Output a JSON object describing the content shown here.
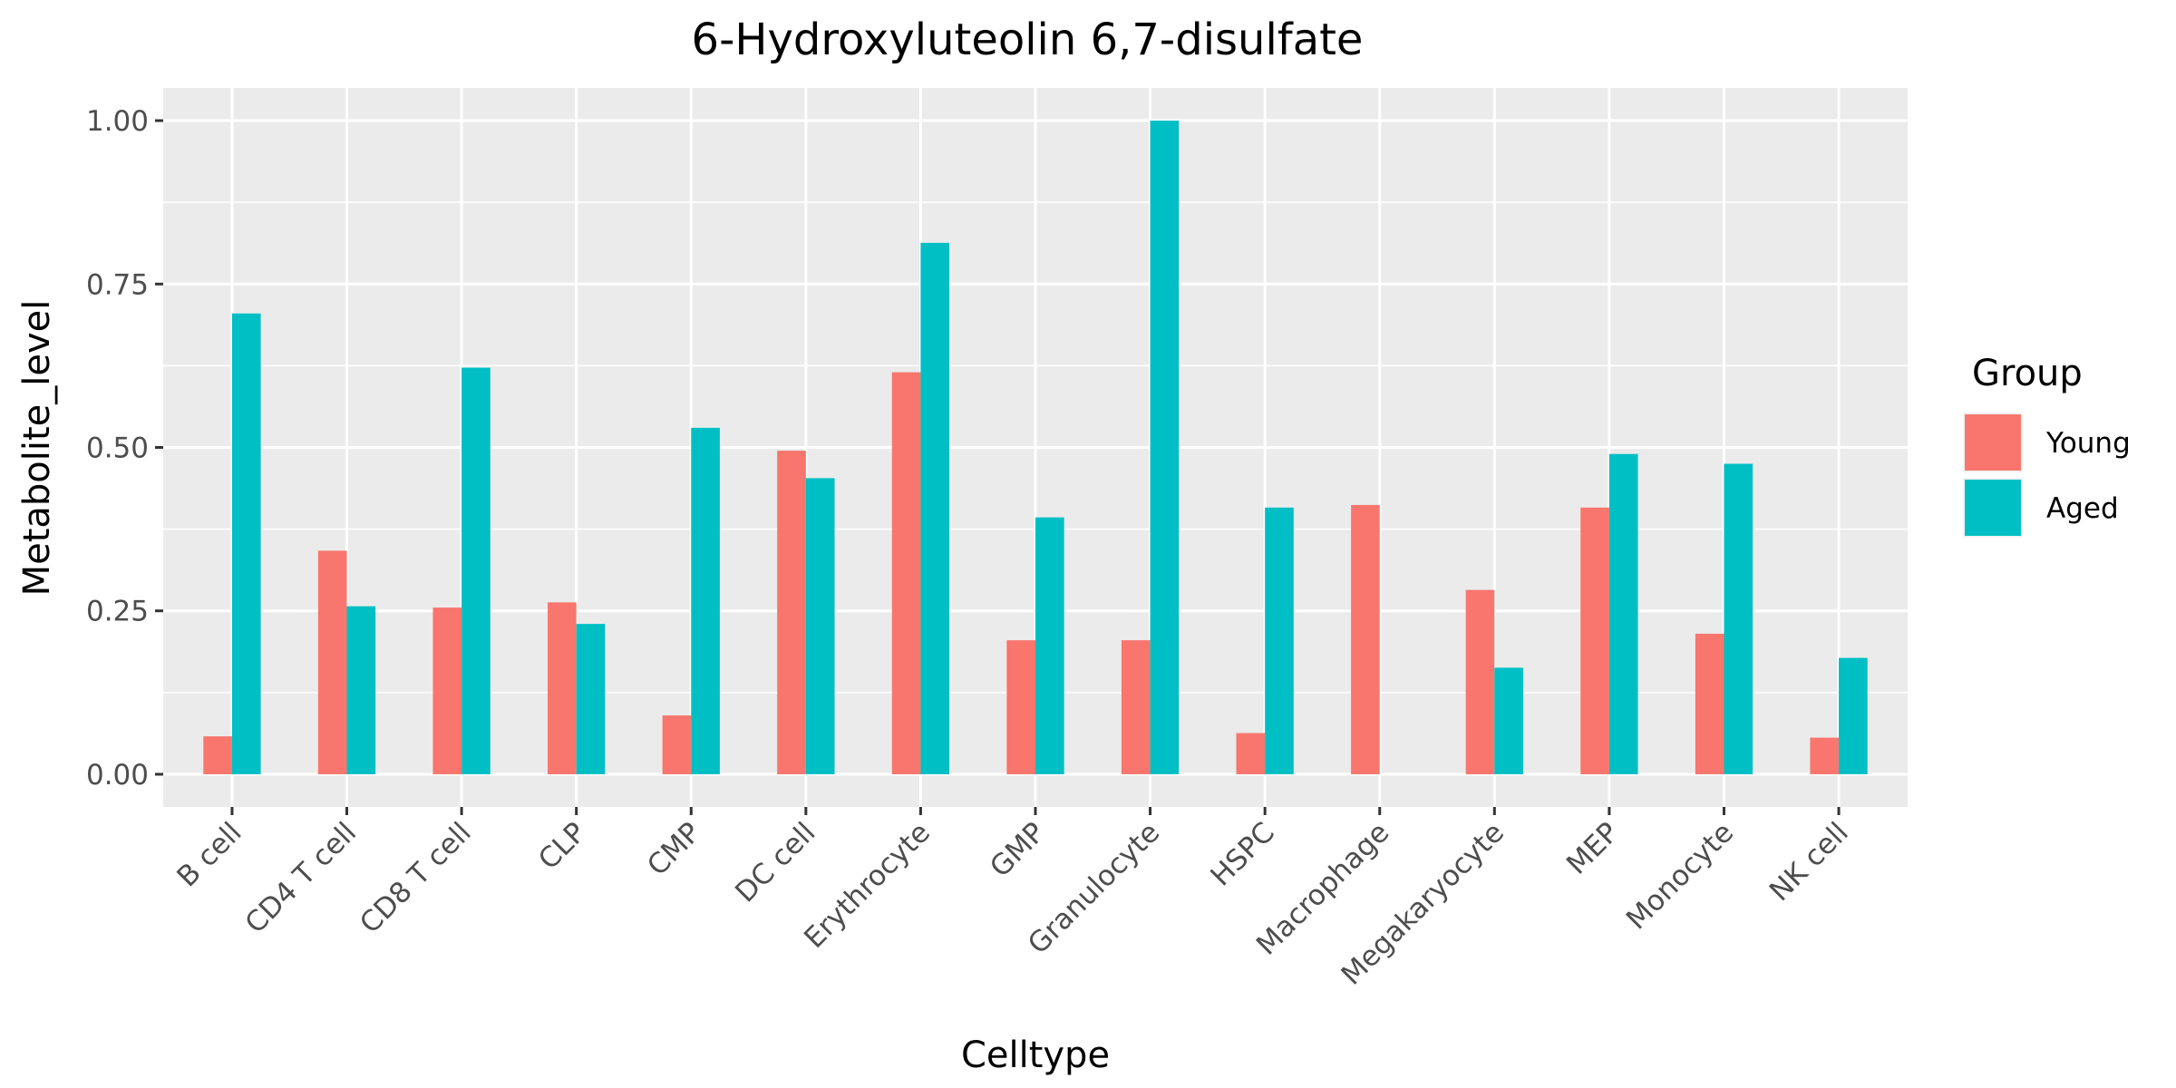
{
  "chart_data": {
    "type": "bar",
    "title": "6-Hydroxyluteolin 6,7-disulfate",
    "xlabel": "Celltype",
    "ylabel": "Metabolite_level",
    "ylim": [
      -0.05,
      1.05
    ],
    "yticks": [
      "0.00",
      "0.25",
      "0.50",
      "0.75",
      "1.00"
    ],
    "ytick_values": [
      0,
      0.25,
      0.5,
      0.75,
      1.0
    ],
    "grid": true,
    "legend_title": "Group",
    "legend_position": "right",
    "categories": [
      "B cell",
      "CD4 T cell",
      "CD8 T cell",
      "CLP",
      "CMP",
      "DC cell",
      "Erythrocyte",
      "GMP",
      "Granulocyte",
      "HSPC",
      "Macrophage",
      "Megakaryocyte",
      "MEP",
      "Monocyte",
      "NK cell"
    ],
    "series": [
      {
        "name": "Young",
        "color": "#F8766D",
        "values": [
          0.058,
          0.342,
          0.255,
          0.263,
          0.09,
          0.495,
          0.615,
          0.205,
          0.205,
          0.063,
          0.412,
          0.282,
          0.408,
          0.215,
          0.056
        ]
      },
      {
        "name": "Aged",
        "color": "#00BFC4",
        "values": [
          0.705,
          0.257,
          0.622,
          0.23,
          0.53,
          0.453,
          0.813,
          0.393,
          1.0,
          0.408,
          0.0,
          0.163,
          0.49,
          0.475,
          0.178
        ]
      }
    ]
  }
}
